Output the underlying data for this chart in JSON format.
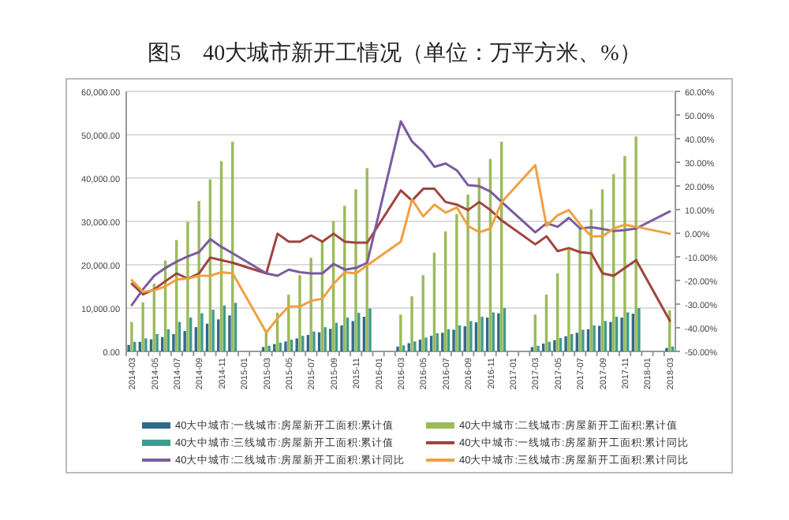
{
  "chart_data": {
    "type": "bar",
    "title": "图5　40大城市新开工情况（单位：万平方米、%）",
    "categories": [
      "2014-03",
      null,
      "2014-05",
      null,
      "2014-07",
      null,
      "2014-09",
      null,
      "2014-11",
      null,
      "2015-01",
      null,
      "2015-03",
      null,
      "2015-05",
      null,
      "2015-07",
      null,
      "2015-09",
      null,
      "2015-11",
      null,
      "2016-01",
      null,
      "2016-03",
      null,
      "2016-05",
      null,
      "2016-07",
      null,
      "2016-09",
      null,
      "2016-11",
      null,
      "2017-01",
      null,
      "2017-03",
      null,
      "2017-05",
      null,
      "2017-07",
      null,
      "2017-09",
      null,
      "2017-11",
      null,
      "2018-01",
      null,
      "2018-03"
    ],
    "series": [
      {
        "name": "40大中城市:一线城市:房屋新开工面积:累计值",
        "color": "#2f6a8a",
        "values": [
          1500,
          2200,
          2800,
          3300,
          4000,
          4700,
          5600,
          6400,
          7400,
          8300,
          null,
          null,
          1000,
          1700,
          2300,
          3000,
          3800,
          4400,
          5200,
          6000,
          7000,
          8000,
          null,
          null,
          1100,
          1900,
          2700,
          3600,
          4300,
          5000,
          5800,
          6700,
          7800,
          8800,
          null,
          null,
          1000,
          1800,
          2600,
          3500,
          4300,
          5100,
          5900,
          6800,
          7800,
          8700,
          null,
          null,
          800
        ]
      },
      {
        "name": "40大中城市:二线城市:房屋新开工面积:累计值",
        "color": "#9bbb59",
        "values": [
          6800,
          11300,
          15600,
          21000,
          25700,
          29900,
          34700,
          39700,
          43900,
          48400,
          null,
          null,
          4500,
          8900,
          13100,
          17600,
          21600,
          25500,
          30100,
          33600,
          37400,
          42300,
          null,
          null,
          8500,
          12700,
          17600,
          22800,
          27700,
          31700,
          36200,
          40100,
          44400,
          48400,
          null,
          null,
          8500,
          13100,
          18000,
          23500,
          28300,
          32800,
          37400,
          40900,
          45100,
          49600,
          null,
          null,
          9500
        ]
      },
      {
        "name": "40大中城市:三线城市:房屋新开工面积:累计值",
        "color": "#3f9c8e",
        "values": [
          2200,
          3000,
          4000,
          5100,
          6800,
          7800,
          8800,
          9600,
          10600,
          11200,
          null,
          null,
          1300,
          2000,
          2700,
          3600,
          4600,
          5600,
          6600,
          7800,
          8900,
          9900,
          null,
          null,
          1400,
          2300,
          3200,
          4200,
          5100,
          6000,
          7000,
          8000,
          9000,
          10000,
          null,
          null,
          1300,
          2200,
          3100,
          4000,
          5000,
          6000,
          7000,
          8000,
          9000,
          10000,
          null,
          null,
          1100
        ]
      },
      {
        "name": "40大中城市:一线城市:房屋新开工面积:累计同比",
        "type": "line",
        "axis": "y2",
        "color": "#a0443f",
        "values": [
          -21.4,
          -25.9,
          -23.7,
          -20.3,
          -17,
          -19.2,
          -17,
          -10.3,
          -11.4,
          -12.5,
          null,
          null,
          -17,
          -0.2,
          -3.6,
          -3.6,
          -0.9,
          -3.6,
          -0.2,
          -3.6,
          -4,
          -4,
          null,
          null,
          18.1,
          13.8,
          18.8,
          18.8,
          13.2,
          12.1,
          9.8,
          13.2,
          9.8,
          5.4,
          null,
          null,
          -4.7,
          -1.3,
          -7.6,
          -6.3,
          -8,
          -8.5,
          -17,
          -18,
          -14.7,
          -11.4,
          null,
          null,
          -37
        ]
      },
      {
        "name": "40大中城市:二线城市:房屋新开工面积:累计同比",
        "type": "line",
        "axis": "y2",
        "color": "#7a5c9e",
        "values": [
          -30.4,
          -23.7,
          -18,
          -14.7,
          -12,
          -9.8,
          -8,
          -2.5,
          -5.8,
          -8.5,
          null,
          null,
          -17,
          -18,
          -15.4,
          -16.5,
          -17,
          -17,
          -13,
          -15.4,
          -14.7,
          -12.5,
          null,
          null,
          47.3,
          38.8,
          34.4,
          28.1,
          29.5,
          26.6,
          20.3,
          19.9,
          17.6,
          13.2,
          null,
          null,
          0.4,
          4.2,
          2.7,
          6.5,
          2,
          2.5,
          1.8,
          0.9,
          1.3,
          2,
          null,
          null,
          9.2
        ]
      },
      {
        "name": "40大中城市:三线城市:房屋新开工面积:累计同比",
        "type": "line",
        "axis": "y2",
        "color": "#f0a040",
        "values": [
          -19.9,
          -24.8,
          -24.1,
          -22.5,
          -19.6,
          -19.2,
          -18,
          -18,
          -16.5,
          -17,
          null,
          null,
          -42,
          -36,
          -31,
          -31,
          -28.6,
          -27.7,
          -21.4,
          -16.5,
          -17,
          -13.6,
          null,
          null,
          -3.6,
          14.3,
          7.1,
          12.1,
          8.7,
          10.9,
          3.1,
          0.4,
          2,
          13.2,
          null,
          null,
          28.8,
          3.1,
          7.6,
          9.8,
          3.6,
          -1.3,
          -1.3,
          2,
          3.6,
          2.7,
          null,
          null,
          -0.2
        ]
      }
    ],
    "ylim": [
      0,
      60000
    ],
    "yticks": [
      {
        "value": 0,
        "label": "0.00"
      },
      {
        "value": 10000,
        "label": "10,000.00"
      },
      {
        "value": 20000,
        "label": "20,000.00"
      },
      {
        "value": 30000,
        "label": "30,000.00"
      },
      {
        "value": 40000,
        "label": "40,000.00"
      },
      {
        "value": 50000,
        "label": "50,000.00"
      },
      {
        "value": 60000,
        "label": "60,000.00"
      }
    ],
    "y2lim": [
      -50,
      60
    ],
    "y2ticks": [
      {
        "value": -50,
        "label": "-50.00%"
      },
      {
        "value": -40,
        "label": "-40.00%"
      },
      {
        "value": -30,
        "label": "-30.00%"
      },
      {
        "value": -20,
        "label": "-20.00%"
      },
      {
        "value": -10,
        "label": "-10.00%"
      },
      {
        "value": 0,
        "label": "0.00%"
      },
      {
        "value": 10,
        "label": "10.00%"
      },
      {
        "value": 20,
        "label": "20.00%"
      },
      {
        "value": 30,
        "label": "30.00%"
      },
      {
        "value": 40,
        "label": "40.00%"
      },
      {
        "value": 50,
        "label": "50.00%"
      },
      {
        "value": 60,
        "label": "60.00%"
      }
    ],
    "grid": "y",
    "legend": "bottom"
  }
}
